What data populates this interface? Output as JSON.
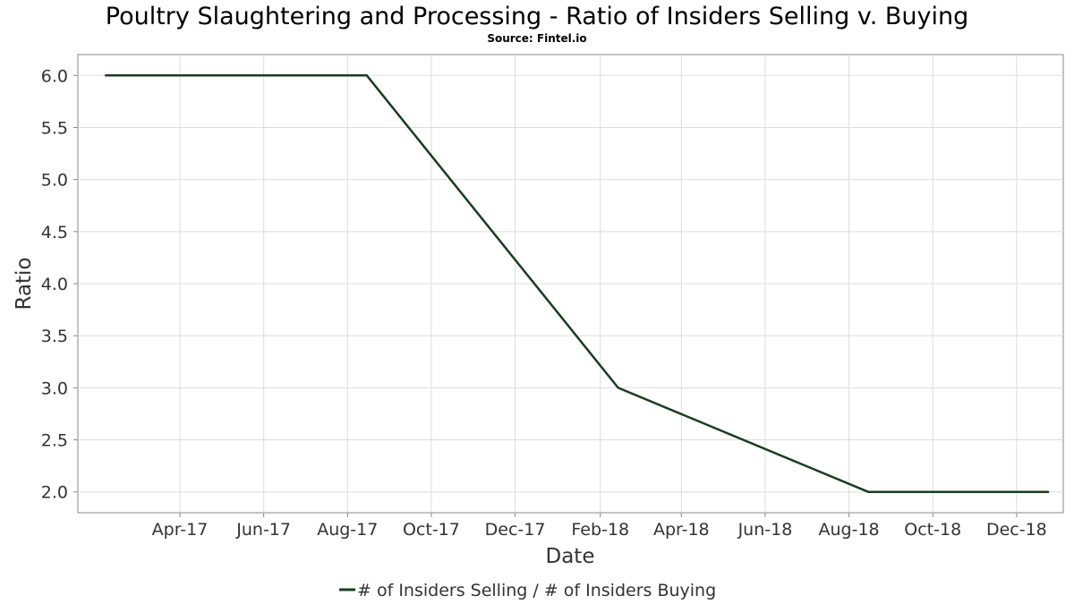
{
  "chart_data": {
    "type": "line",
    "title": "Poultry Slaughtering and Processing - Ratio of Insiders Selling v. Buying",
    "subtitle": "Source: Fintel.io",
    "xlabel": "Date",
    "ylabel": "Ratio",
    "x_ticks": [
      "2017-04-01",
      "2017-06-01",
      "2017-08-01",
      "2017-10-01",
      "2017-12-01",
      "2018-02-01",
      "2018-04-01",
      "2018-06-01",
      "2018-08-01",
      "2018-10-01",
      "2018-12-01"
    ],
    "x_tick_labels": [
      "Apr-17",
      "Jun-17",
      "Aug-17",
      "Oct-17",
      "Dec-17",
      "Feb-18",
      "Apr-18",
      "Jun-18",
      "Aug-18",
      "Oct-18",
      "Dec-18"
    ],
    "xlim": [
      "2017-01-20",
      "2019-01-02"
    ],
    "ylim": [
      1.8,
      6.2
    ],
    "y_ticks": [
      2.0,
      2.5,
      3.0,
      3.5,
      4.0,
      4.5,
      5.0,
      5.5,
      6.0
    ],
    "y_tick_labels": [
      "2.0",
      "2.5",
      "3.0",
      "3.5",
      "4.0",
      "4.5",
      "5.0",
      "5.5",
      "6.0"
    ],
    "grid": true,
    "legend_position": "bottom-center",
    "series": [
      {
        "name": "# of Insiders Selling / # of Insiders Buying",
        "color": "#1a3d1f",
        "x": [
          "2017-02-06",
          "2017-08-15",
          "2018-02-14",
          "2018-08-15",
          "2018-12-24"
        ],
        "y": [
          6.0,
          6.0,
          3.0,
          2.0,
          2.0
        ]
      }
    ]
  }
}
